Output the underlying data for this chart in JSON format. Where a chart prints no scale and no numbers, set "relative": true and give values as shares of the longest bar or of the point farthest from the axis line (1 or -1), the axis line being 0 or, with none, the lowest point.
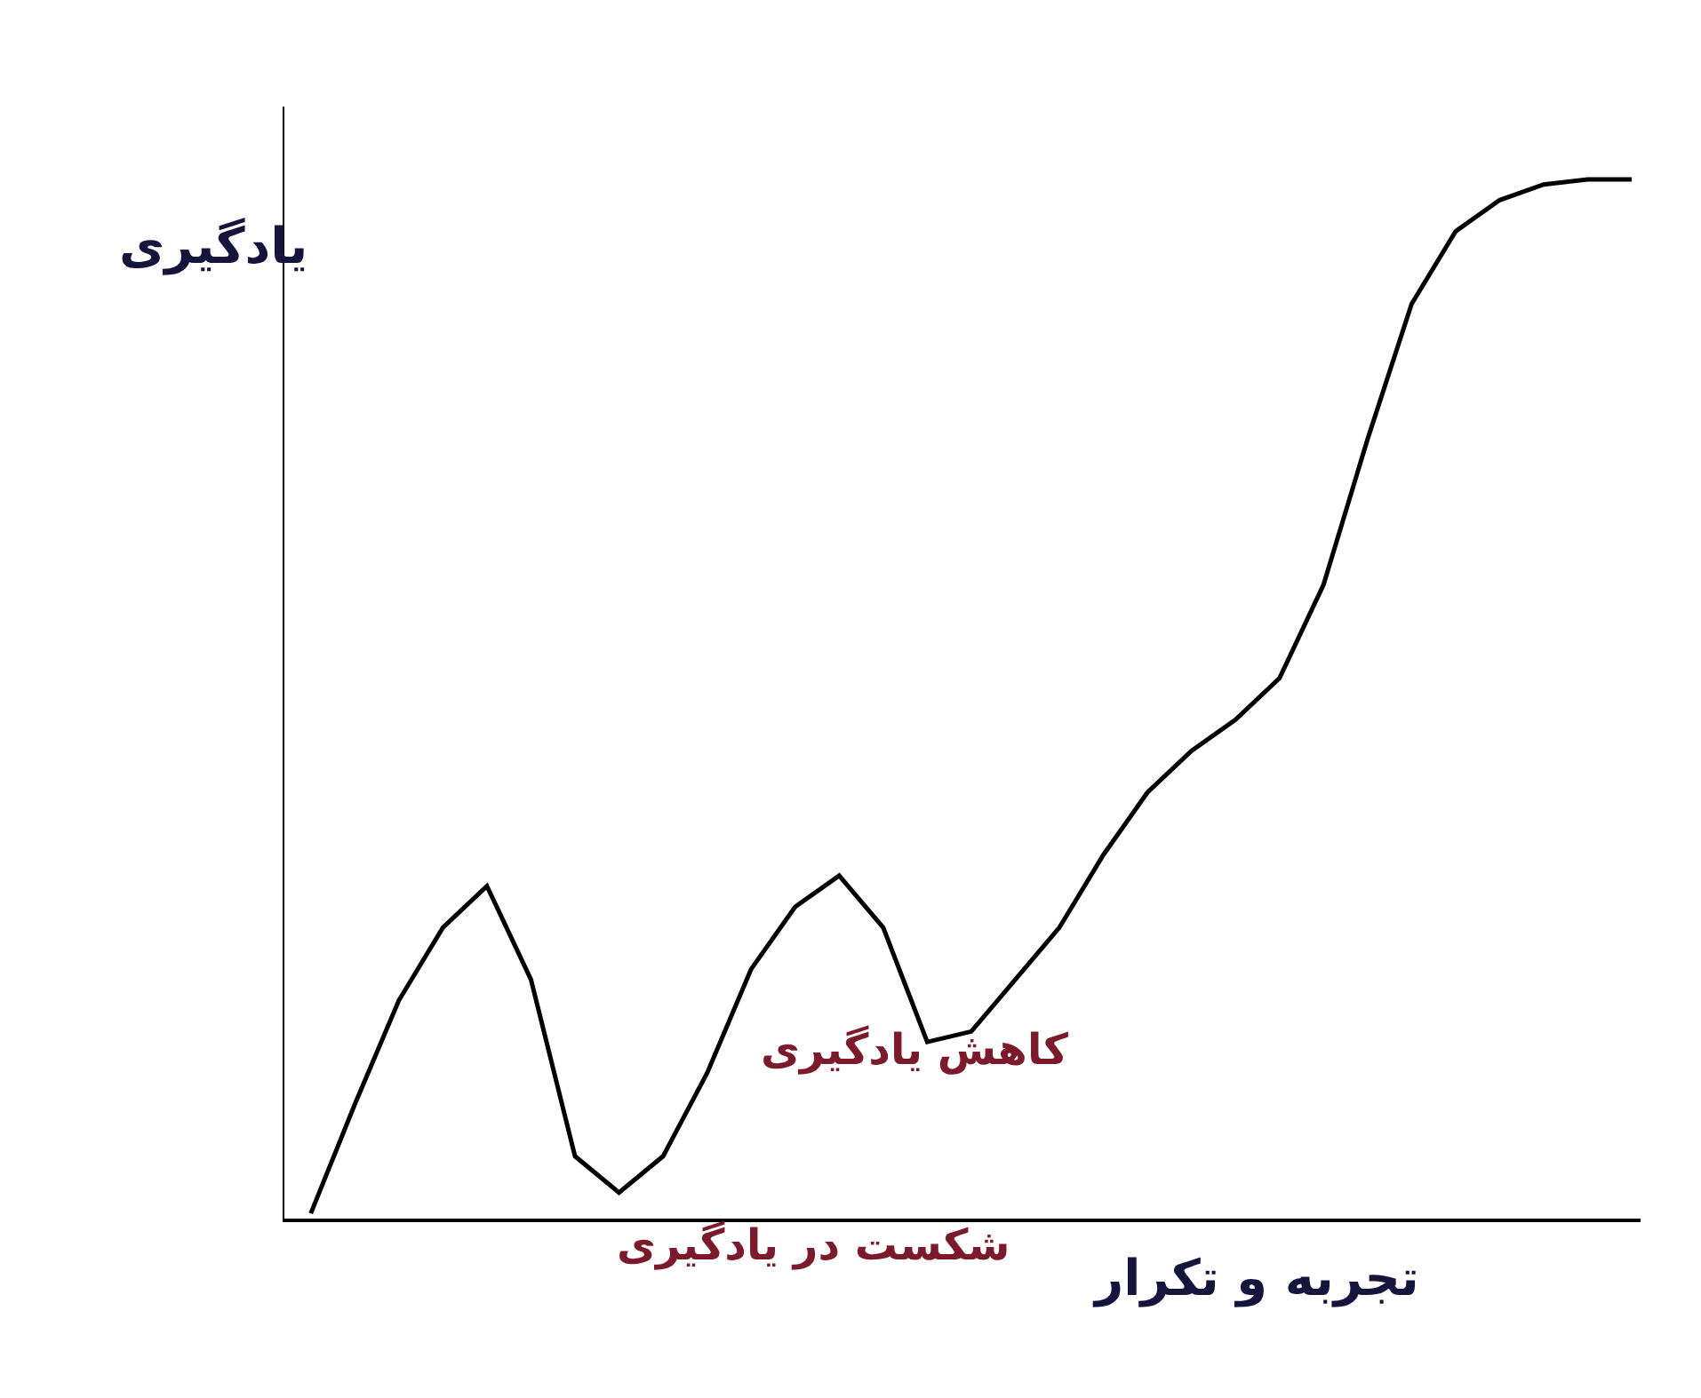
{
  "chart_data": {
    "type": "line",
    "relative": true,
    "xlabel": "تجربه و تکرار",
    "ylabel": "یادگیری",
    "annotations": [
      "شکست در یادگیری",
      "کاهش یادگیری"
    ],
    "categories": [
      null,
      null,
      null,
      null,
      null,
      null,
      null,
      null,
      null,
      null,
      null,
      null,
      null,
      null,
      null,
      null,
      null,
      null,
      null,
      null,
      null,
      null,
      null,
      null,
      null,
      null,
      null,
      null,
      null,
      null,
      null
    ],
    "series": [
      {
        "color": "#000000",
        "values": [
          0.005,
          0.11,
          0.21,
          0.28,
          0.32,
          0.23,
          0.06,
          0.025,
          0.06,
          0.14,
          0.24,
          0.3,
          0.33,
          0.28,
          0.17,
          0.18,
          0.23,
          0.28,
          0.35,
          0.41,
          0.45,
          0.48,
          0.52,
          0.61,
          0.75,
          0.88,
          0.95,
          0.98,
          0.995,
          1,
          1
        ]
      }
    ],
    "grid": false,
    "legend": false,
    "marker": "none",
    "line_style": "solid"
  }
}
